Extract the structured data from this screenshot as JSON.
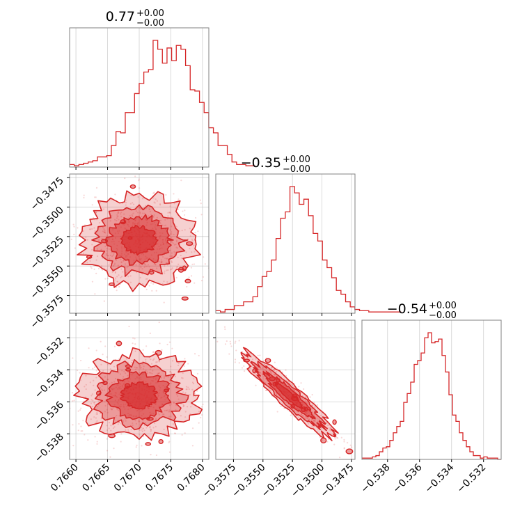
{
  "colors": {
    "series": "#d62728",
    "grid": "#b0b0b0",
    "frame": "#808080"
  },
  "chart_data": [
    {
      "type": "histogram",
      "panel": "0,0",
      "title": {
        "value": "0.77",
        "upper": "+0.00",
        "lower": "−0.00"
      },
      "x_range": [
        0.7659,
        0.7681
      ],
      "grid": true,
      "bins_start": 0.7659,
      "bin_width": 7.33e-05,
      "counts": [
        2,
        1,
        2,
        3,
        4,
        5,
        8,
        8,
        9,
        17,
        28,
        27,
        43,
        43,
        58,
        66,
        75,
        77,
        100,
        93,
        82,
        94,
        84,
        96,
        93,
        80,
        61,
        60,
        51,
        43,
        31,
        27,
        17,
        17,
        10,
        4,
        2,
        2,
        1,
        1
      ]
    },
    {
      "type": "contour",
      "panel": "1,0",
      "x_range": [
        0.7659,
        0.7681
      ],
      "y_range": [
        -0.359,
        -0.3472
      ],
      "y_ticks": [
        -0.3475,
        -0.35,
        -0.3525,
        -0.355,
        -0.3575
      ],
      "y_tick_labels": [
        "−0.3475",
        "−0.3500",
        "−0.3525",
        "−0.3550",
        "−0.3575"
      ],
      "center": [
        0.767,
        -0.3528
      ],
      "std": [
        0.00038,
        0.0016
      ],
      "correlation": 0.0,
      "grid": true
    },
    {
      "type": "histogram",
      "panel": "1,1",
      "title": {
        "value": "−0.35",
        "upper": "+0.00",
        "lower": "−0.00"
      },
      "x_range": [
        -0.359,
        -0.3472
      ],
      "grid": true,
      "bins_start": -0.359,
      "bin_width": 0.000393,
      "counts": [
        2,
        1,
        3,
        3,
        6,
        6,
        9,
        9,
        13,
        21,
        29,
        33,
        42,
        59,
        75,
        80,
        100,
        95,
        86,
        90,
        77,
        63,
        57,
        42,
        36,
        28,
        18,
        15,
        9,
        5,
        3,
        2,
        2,
        1,
        1,
        1,
        1,
        1,
        1,
        1
      ]
    },
    {
      "type": "contour",
      "panel": "2,0",
      "x_range": [
        0.7659,
        0.7681
      ],
      "y_range": [
        -0.5396,
        -0.5309
      ],
      "y_ticks": [
        -0.532,
        -0.534,
        -0.536,
        -0.538
      ],
      "y_tick_labels": [
        "−0.532",
        "−0.534",
        "−0.536",
        "−0.538"
      ],
      "x_ticks": [
        0.766,
        0.7665,
        0.767,
        0.7675,
        0.768
      ],
      "x_tick_labels": [
        "0.7660",
        "0.7665",
        "0.7670",
        "0.7675",
        "0.7680"
      ],
      "center": [
        0.767,
        -0.5356
      ],
      "std": [
        0.00038,
        0.0011
      ],
      "correlation": 0.0,
      "grid": true
    },
    {
      "type": "contour",
      "panel": "2,1",
      "x_range": [
        -0.359,
        -0.3472
      ],
      "y_range": [
        -0.5396,
        -0.5309
      ],
      "x_ticks": [
        -0.3575,
        -0.355,
        -0.3525,
        -0.35,
        -0.3475
      ],
      "x_tick_labels": [
        "−0.3575",
        "−0.3550",
        "−0.3525",
        "−0.3500",
        "−0.3475"
      ],
      "center": [
        -0.3528,
        -0.5356
      ],
      "std": [
        0.0016,
        0.0011
      ],
      "correlation": -0.93,
      "grid": true
    },
    {
      "type": "histogram",
      "panel": "2,2",
      "title": {
        "value": "−0.54",
        "upper": "+0.00",
        "lower": "−0.00"
      },
      "x_range": [
        -0.5396,
        -0.5309
      ],
      "grid": true,
      "x_ticks": [
        -0.538,
        -0.536,
        -0.534,
        -0.532
      ],
      "x_tick_labels": [
        "−0.538",
        "−0.536",
        "−0.534",
        "−0.532"
      ],
      "bins_start": -0.5396,
      "bin_width": 0.0002175,
      "counts": [
        1,
        1,
        1,
        2,
        3,
        6,
        9,
        10,
        15,
        21,
        26,
        30,
        45,
        52,
        61,
        75,
        78,
        84,
        96,
        100,
        92,
        93,
        95,
        82,
        69,
        51,
        35,
        30,
        21,
        15,
        10,
        6,
        3,
        3,
        1,
        2,
        1,
        1,
        1,
        0
      ]
    }
  ]
}
